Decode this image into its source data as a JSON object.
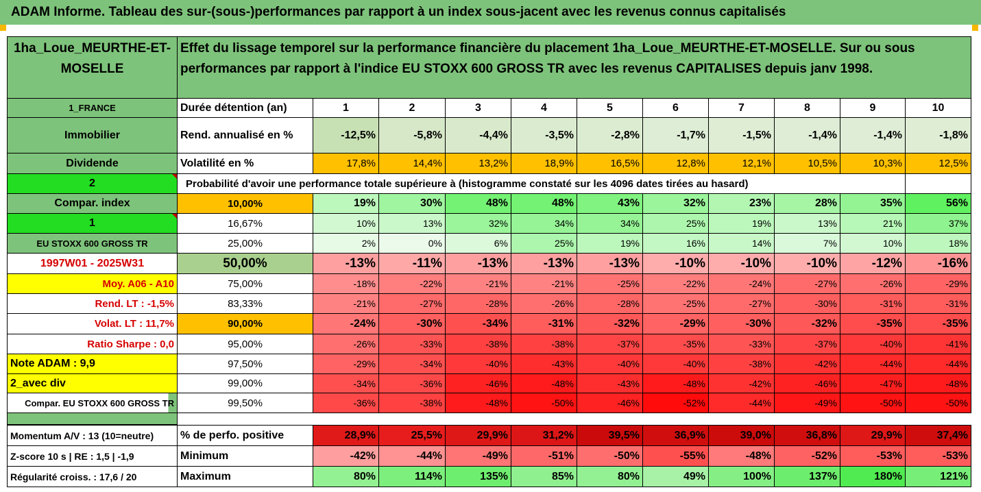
{
  "title": "ADAM Informe. Tableau des sur-(sous-)performances par rapport à un index sous-jacent avec les revenus connus capitalisés",
  "fund_name": "1ha_Loue_MEURTHE-ET-MOSELLE",
  "description": "Effet du lissage temporel sur la performance financière du placement 1ha_Loue_MEURTHE-ET-MOSELLE. Sur ou sous performances par rapport à l'indice EU STOXX 600 GROSS TR avec les revenus CAPITALISES depuis janv 1998.",
  "left_labels": {
    "country": "1_FRANCE",
    "category": "Immobilier",
    "type": "Dividende",
    "num2": "2",
    "compar_index": "Compar. index",
    "num1": "1",
    "index_name": "EU STOXX 600 GROSS TR",
    "period": "1997W01 - 2025W31",
    "moy": "Moy. A06 - A10",
    "rend_lt": "Rend. LT :   -1,5%",
    "volat_lt": "Volat. LT :   11,7%",
    "sharpe": "Ratio Sharpe :    0,0",
    "note": "Note ADAM : 9,9",
    "avec_div": "2_avec div",
    "compar_full": "Compar. EU STOXX 600 GROSS TR",
    "momentum": "Momentum A/V : 13 (10=neutre)",
    "zscore": "Z-score 10 s  | RE : 1,5  | -1,9",
    "regularite": "Régularité croiss. : 17,6 / 20"
  },
  "row_labels": {
    "duree": "Durée détention (an)",
    "rend": "Rend. annualisé en %",
    "volat": "Volatilité en %",
    "probability": "Probabilité d'avoir une performance totale supérieure à (histogramme constaté sur les 4096 dates tirées au hasard)",
    "perf_pos": "% de perfo. positive",
    "minimum": "Minimum",
    "maximum": "Maximum"
  },
  "years": [
    "1",
    "2",
    "3",
    "4",
    "5",
    "6",
    "7",
    "8",
    "9",
    "10"
  ],
  "rend": [
    "-12,5%",
    "-5,8%",
    "-4,4%",
    "-3,5%",
    "-2,8%",
    "-1,7%",
    "-1,5%",
    "-1,4%",
    "-1,4%",
    "-1,8%"
  ],
  "volat": [
    "17,8%",
    "14,4%",
    "13,2%",
    "18,9%",
    "16,5%",
    "12,8%",
    "12,1%",
    "10,5%",
    "10,3%",
    "12,5%"
  ],
  "quantiles": [
    {
      "q": "10,00%",
      "values": [
        "19%",
        "30%",
        "48%",
        "48%",
        "43%",
        "32%",
        "23%",
        "28%",
        "35%",
        "56%"
      ]
    },
    {
      "q": "16,67%",
      "values": [
        "10%",
        "13%",
        "32%",
        "34%",
        "34%",
        "25%",
        "19%",
        "13%",
        "21%",
        "37%"
      ]
    },
    {
      "q": "25,00%",
      "values": [
        "2%",
        "0%",
        "6%",
        "25%",
        "19%",
        "16%",
        "14%",
        "7%",
        "10%",
        "18%"
      ]
    },
    {
      "q": "50,00%",
      "values": [
        "-13%",
        "-11%",
        "-13%",
        "-13%",
        "-13%",
        "-10%",
        "-10%",
        "-10%",
        "-12%",
        "-16%"
      ]
    },
    {
      "q": "75,00%",
      "values": [
        "-18%",
        "-22%",
        "-21%",
        "-21%",
        "-25%",
        "-22%",
        "-24%",
        "-27%",
        "-26%",
        "-29%"
      ]
    },
    {
      "q": "83,33%",
      "values": [
        "-21%",
        "-27%",
        "-28%",
        "-26%",
        "-28%",
        "-25%",
        "-27%",
        "-30%",
        "-31%",
        "-31%"
      ]
    },
    {
      "q": "90,00%",
      "values": [
        "-24%",
        "-30%",
        "-34%",
        "-31%",
        "-32%",
        "-29%",
        "-30%",
        "-32%",
        "-35%",
        "-35%"
      ]
    },
    {
      "q": "95,00%",
      "values": [
        "-26%",
        "-33%",
        "-38%",
        "-38%",
        "-37%",
        "-35%",
        "-33%",
        "-37%",
        "-40%",
        "-41%"
      ]
    },
    {
      "q": "97,50%",
      "values": [
        "-29%",
        "-34%",
        "-40%",
        "-43%",
        "-40%",
        "-40%",
        "-38%",
        "-42%",
        "-44%",
        "-44%"
      ]
    },
    {
      "q": "99,00%",
      "values": [
        "-34%",
        "-36%",
        "-46%",
        "-48%",
        "-43%",
        "-48%",
        "-42%",
        "-46%",
        "-47%",
        "-48%"
      ]
    },
    {
      "q": "99,50%",
      "values": [
        "-36%",
        "-38%",
        "-48%",
        "-50%",
        "-46%",
        "-52%",
        "-44%",
        "-49%",
        "-50%",
        "-50%"
      ]
    }
  ],
  "perf_pos": [
    "28,9%",
    "25,5%",
    "29,9%",
    "31,2%",
    "39,5%",
    "36,9%",
    "39,0%",
    "36,8%",
    "29,9%",
    "37,4%"
  ],
  "minimum": [
    "-42%",
    "-44%",
    "-49%",
    "-51%",
    "-50%",
    "-55%",
    "-48%",
    "-52%",
    "-53%",
    "-53%"
  ],
  "maximum": [
    "80%",
    "114%",
    "135%",
    "85%",
    "80%",
    "49%",
    "100%",
    "137%",
    "180%",
    "121%"
  ],
  "colors": {
    "header_green": "#7ec37b",
    "bright_green": "#22dd22",
    "orange": "#ffc000",
    "yellow": "#ffff00",
    "light_green": "#c6e0b4",
    "red": "#ff0000"
  }
}
